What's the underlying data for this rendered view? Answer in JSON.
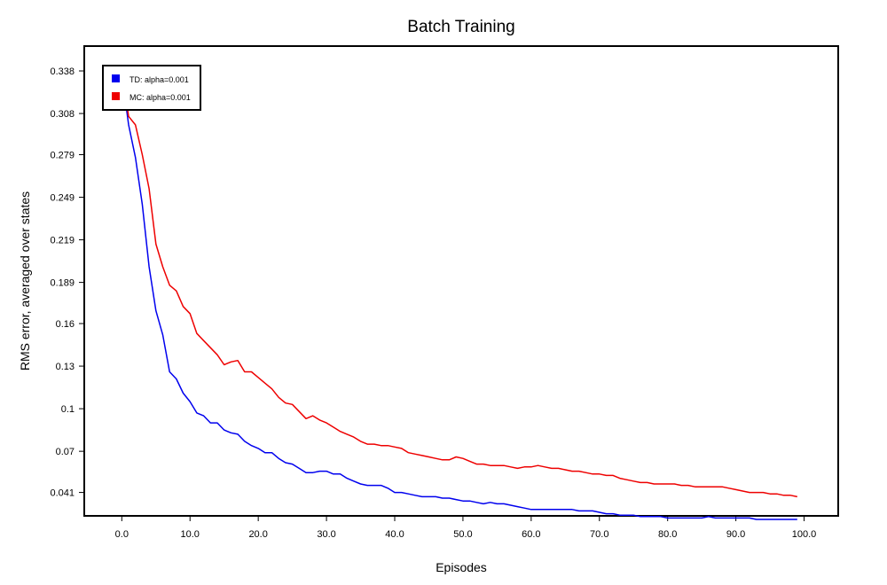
{
  "chart_data": {
    "type": "line",
    "title": "Batch Training",
    "xlabel": "Episodes",
    "ylabel": "RMS error, averaged over states",
    "xlim": [
      -5.5,
      105
    ],
    "ylim": [
      0.0245,
      0.3555
    ],
    "xticks": [
      0,
      10,
      20,
      30,
      40,
      50,
      60,
      70,
      80,
      90,
      100
    ],
    "xtick_labels": [
      "0.0",
      "10.0",
      "20.0",
      "30.0",
      "40.0",
      "50.0",
      "60.0",
      "70.0",
      "80.0",
      "90.0",
      "100.0"
    ],
    "yticks": [
      0.041,
      0.07,
      0.1,
      0.13,
      0.16,
      0.189,
      0.219,
      0.249,
      0.279,
      0.308,
      0.338
    ],
    "ytick_labels": [
      "0.041",
      "0.07",
      "0.1",
      "0.13",
      "0.16",
      "0.189",
      "0.219",
      "0.249",
      "0.279",
      "0.308",
      "0.338"
    ],
    "grid": false,
    "legend_position": "top-left",
    "x": [
      0,
      1,
      2,
      3,
      4,
      5,
      6,
      7,
      8,
      9,
      10,
      11,
      12,
      13,
      14,
      15,
      16,
      17,
      18,
      19,
      20,
      21,
      22,
      23,
      24,
      25,
      26,
      27,
      28,
      29,
      30,
      31,
      32,
      33,
      34,
      35,
      36,
      37,
      38,
      39,
      40,
      41,
      42,
      43,
      44,
      45,
      46,
      47,
      48,
      49,
      50,
      51,
      52,
      53,
      54,
      55,
      56,
      57,
      58,
      59,
      60,
      61,
      62,
      63,
      64,
      65,
      66,
      67,
      68,
      69,
      70,
      71,
      72,
      73,
      74,
      75,
      76,
      77,
      78,
      79,
      80,
      81,
      82,
      83,
      84,
      85,
      86,
      87,
      88,
      89,
      90,
      91,
      92,
      93,
      94,
      95,
      96,
      97,
      98,
      99
    ],
    "series": [
      {
        "name": "TD: alpha=0.001",
        "color": "#0000ee",
        "values": [
          0.336,
          0.3,
          0.277,
          0.244,
          0.2,
          0.169,
          0.152,
          0.126,
          0.121,
          0.111,
          0.105,
          0.097,
          0.095,
          0.09,
          0.09,
          0.085,
          0.083,
          0.082,
          0.077,
          0.074,
          0.072,
          0.069,
          0.069,
          0.065,
          0.062,
          0.061,
          0.058,
          0.055,
          0.055,
          0.056,
          0.056,
          0.054,
          0.054,
          0.051,
          0.049,
          0.047,
          0.046,
          0.046,
          0.046,
          0.044,
          0.041,
          0.041,
          0.04,
          0.039,
          0.038,
          0.038,
          0.038,
          0.037,
          0.037,
          0.036,
          0.035,
          0.035,
          0.034,
          0.033,
          0.034,
          0.033,
          0.033,
          0.032,
          0.031,
          0.03,
          0.029,
          0.029,
          0.029,
          0.029,
          0.029,
          0.029,
          0.029,
          0.028,
          0.028,
          0.028,
          0.027,
          0.026,
          0.026,
          0.025,
          0.025,
          0.025,
          0.024,
          0.024,
          0.024,
          0.024,
          0.023,
          0.023,
          0.023,
          0.023,
          0.023,
          0.023,
          0.024,
          0.023,
          0.023,
          0.023,
          0.023,
          0.023,
          0.023,
          0.022,
          0.022,
          0.022,
          0.022,
          0.022,
          0.022,
          0.022
        ]
      },
      {
        "name": "MC: alpha=0.001",
        "color": "#ee0000",
        "values": [
          0.339,
          0.306,
          0.3,
          0.279,
          0.255,
          0.216,
          0.2,
          0.187,
          0.183,
          0.172,
          0.167,
          0.153,
          0.148,
          0.143,
          0.138,
          0.131,
          0.133,
          0.134,
          0.126,
          0.126,
          0.122,
          0.118,
          0.114,
          0.108,
          0.104,
          0.103,
          0.098,
          0.093,
          0.095,
          0.092,
          0.09,
          0.087,
          0.084,
          0.082,
          0.08,
          0.077,
          0.075,
          0.075,
          0.074,
          0.074,
          0.073,
          0.072,
          0.069,
          0.068,
          0.067,
          0.066,
          0.065,
          0.064,
          0.064,
          0.066,
          0.065,
          0.063,
          0.061,
          0.061,
          0.06,
          0.06,
          0.06,
          0.059,
          0.058,
          0.059,
          0.059,
          0.06,
          0.059,
          0.058,
          0.058,
          0.057,
          0.056,
          0.056,
          0.055,
          0.054,
          0.054,
          0.053,
          0.053,
          0.051,
          0.05,
          0.049,
          0.048,
          0.048,
          0.047,
          0.047,
          0.047,
          0.047,
          0.046,
          0.046,
          0.045,
          0.045,
          0.045,
          0.045,
          0.045,
          0.044,
          0.043,
          0.042,
          0.041,
          0.041,
          0.041,
          0.04,
          0.04,
          0.039,
          0.039,
          0.038
        ]
      }
    ]
  }
}
